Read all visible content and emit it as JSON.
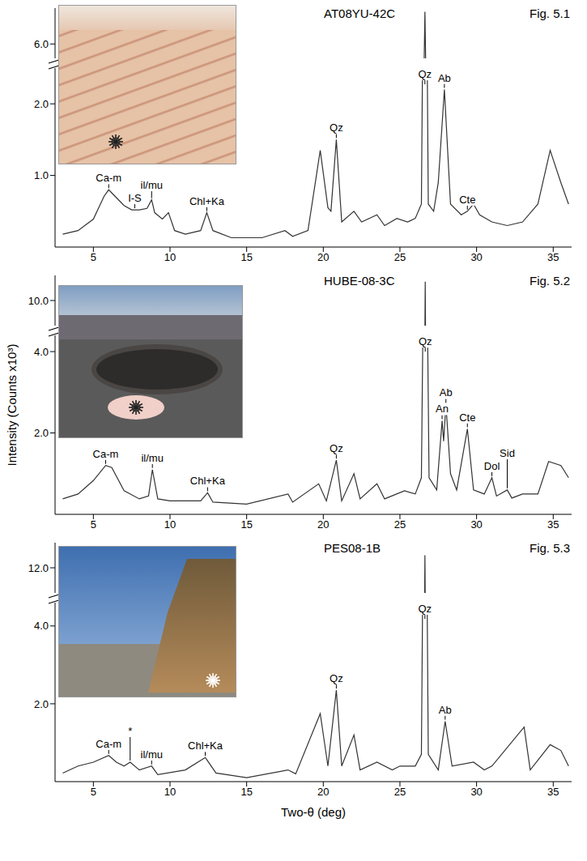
{
  "y_label": "Intensity (Counts x10³)",
  "x_label": "Two-θ (deg)",
  "chart_data": [
    {
      "type": "line",
      "title": "AT08YU-42C",
      "subtitle": "Fig. 5.1",
      "color": "#333333",
      "xlim": [
        2.5,
        36.2
      ],
      "xticks": [
        5,
        10,
        15,
        20,
        25,
        30,
        35
      ],
      "segments": [
        {
          "ylim": [
            5.6,
            7.0
          ],
          "yticks": [
            {
              "value": 6,
              "label": "6.0"
            }
          ]
        },
        {
          "ylim": [
            0,
            2.5
          ],
          "yticks": [
            {
              "value": 1,
              "label": "1.0"
            },
            {
              "value": 2,
              "label": "2.0"
            }
          ]
        }
      ],
      "x": [
        3,
        4,
        5,
        5.7,
        6.0,
        6.5,
        7.0,
        7.5,
        8.0,
        8.5,
        8.8,
        9.0,
        9.5,
        9.9,
        10.3,
        11,
        12,
        12.4,
        12.8,
        14,
        16,
        17.5,
        18,
        19,
        19.8,
        20.3,
        20.5,
        20.85,
        21.2,
        22,
        22.5,
        23.5,
        24,
        24.8,
        25.5,
        26,
        26.4,
        26.63,
        26.85,
        27.2,
        27.5,
        27.9,
        28.3,
        29,
        29.4,
        29.8,
        30.2,
        31,
        32,
        33,
        34,
        34.8,
        35.5,
        36
      ],
      "values": [
        0.18,
        0.23,
        0.39,
        0.71,
        0.8,
        0.69,
        0.58,
        0.52,
        0.52,
        0.54,
        0.66,
        0.48,
        0.39,
        0.48,
        0.23,
        0.18,
        0.23,
        0.48,
        0.23,
        0.13,
        0.13,
        0.23,
        0.15,
        0.23,
        1.35,
        0.55,
        0.5,
        1.5,
        0.35,
        0.5,
        0.35,
        0.45,
        0.3,
        0.4,
        0.35,
        0.4,
        0.6,
        6.9,
        0.6,
        0.5,
        0.9,
        2.2,
        0.6,
        0.45,
        0.5,
        0.6,
        0.45,
        0.35,
        0.3,
        0.35,
        0.6,
        1.35,
        0.9,
        0.6
      ],
      "annotations": [
        {
          "text": "Ca-m",
          "x": 6.0
        },
        {
          "text": "I-S",
          "x": 7.7
        },
        {
          "text": "il/mu",
          "x": 8.8
        },
        {
          "text": "Chl+Ka",
          "x": 12.4
        },
        {
          "text": "Qz",
          "x": 20.85
        },
        {
          "text": "Qz",
          "x": 26.63
        },
        {
          "text": "Ab",
          "x": 27.9
        },
        {
          "text": "Cte",
          "x": 29.4
        }
      ]
    },
    {
      "type": "line",
      "title": "HUBE-08-3C",
      "subtitle": "Fig. 5.2",
      "color": "#333333",
      "xlim": [
        2.5,
        36.2
      ],
      "xticks": [
        5,
        10,
        15,
        20,
        25,
        30,
        35
      ],
      "segments": [
        {
          "ylim": [
            9.6,
            10.4
          ],
          "yticks": [
            {
              "value": 10,
              "label": "10.0"
            }
          ]
        },
        {
          "ylim": [
            0,
            4.4
          ],
          "yticks": [
            {
              "value": 2,
              "label": "2.0"
            },
            {
              "value": 4,
              "label": "4.0"
            }
          ]
        }
      ],
      "x": [
        3,
        4,
        5,
        5.8,
        6.2,
        7,
        8,
        8.6,
        8.85,
        9.2,
        10,
        12,
        12.45,
        12.8,
        15,
        17.7,
        18,
        19.7,
        20.2,
        20.85,
        21.2,
        22,
        22.4,
        23.5,
        24,
        25.3,
        26,
        26.4,
        26.65,
        26.9,
        27.4,
        27.75,
        27.85,
        28.0,
        28.3,
        28.7,
        29.4,
        29.8,
        30.5,
        31.0,
        31.3,
        32.0,
        32.3,
        33,
        34,
        34.7,
        35.5,
        36
      ],
      "values": [
        0.38,
        0.5,
        0.83,
        1.2,
        1.15,
        0.58,
        0.38,
        0.45,
        1.1,
        0.38,
        0.33,
        0.33,
        0.53,
        0.3,
        0.25,
        0.5,
        0.3,
        0.75,
        0.33,
        1.33,
        0.33,
        1.0,
        0.38,
        0.75,
        0.38,
        0.58,
        0.5,
        0.9,
        10.3,
        0.9,
        0.6,
        2.3,
        1.8,
        2.7,
        1.0,
        0.6,
        2.1,
        0.6,
        0.5,
        0.9,
        0.45,
        0.6,
        0.4,
        0.5,
        0.5,
        1.3,
        1.2,
        0.9
      ],
      "annotations": [
        {
          "text": "Ca-m",
          "x": 5.8
        },
        {
          "text": "il/mu",
          "x": 8.85
        },
        {
          "text": "Chl+Ka",
          "x": 12.45
        },
        {
          "text": "Qz",
          "x": 20.85
        },
        {
          "text": "Qz",
          "x": 26.65
        },
        {
          "text": "An",
          "x": 27.75
        },
        {
          "text": "Ab",
          "x": 28.0
        },
        {
          "text": "Cte",
          "x": 29.4
        },
        {
          "text": "Dol",
          "x": 31.0
        },
        {
          "text": "Sid",
          "x": 32.0
        }
      ]
    },
    {
      "type": "line",
      "title": "PES08-1B",
      "subtitle": "Fig. 5.3",
      "color": "#333333",
      "xlim": [
        2.5,
        36.2
      ],
      "xticks": [
        5,
        10,
        15,
        20,
        25,
        30,
        35
      ],
      "segments": [
        {
          "ylim": [
            11.4,
            12.6
          ],
          "yticks": [
            {
              "value": 12,
              "label": "12.0"
            }
          ]
        },
        {
          "ylim": [
            0,
            4.6
          ],
          "yticks": [
            {
              "value": 2,
              "label": "2.0"
            },
            {
              "value": 4,
              "label": "4.0"
            }
          ]
        }
      ],
      "x": [
        3,
        4,
        5,
        6.0,
        6.5,
        7,
        7.4,
        8,
        8.8,
        9.2,
        11,
        12.3,
        13,
        15,
        17.7,
        18.2,
        19.8,
        20.3,
        20.85,
        21.2,
        22,
        22.4,
        23.5,
        24.5,
        25,
        26,
        26.4,
        26.63,
        26.85,
        27.5,
        27.95,
        28.4,
        29.8,
        30.5,
        31,
        33.1,
        33.5,
        34.8,
        35.5,
        36
      ],
      "values": [
        0.22,
        0.4,
        0.5,
        0.67,
        0.5,
        0.4,
        0.5,
        0.3,
        0.4,
        0.18,
        0.3,
        0.62,
        0.22,
        0.1,
        0.3,
        0.2,
        1.75,
        0.4,
        2.35,
        0.4,
        1.2,
        0.3,
        0.5,
        0.3,
        0.4,
        0.4,
        0.7,
        12.3,
        0.7,
        0.3,
        1.55,
        0.4,
        0.5,
        0.3,
        0.4,
        1.4,
        0.3,
        0.95,
        0.8,
        0.4
      ],
      "annotations": [
        {
          "text": "Ca-m",
          "x": 6.0
        },
        {
          "text": "*",
          "x": 7.4
        },
        {
          "text": "il/mu",
          "x": 8.8
        },
        {
          "text": "Chl+Ka",
          "x": 12.3
        },
        {
          "text": "Qz",
          "x": 20.85
        },
        {
          "text": "Qz",
          "x": 26.63
        },
        {
          "text": "Ab",
          "x": 27.95
        }
      ]
    }
  ]
}
